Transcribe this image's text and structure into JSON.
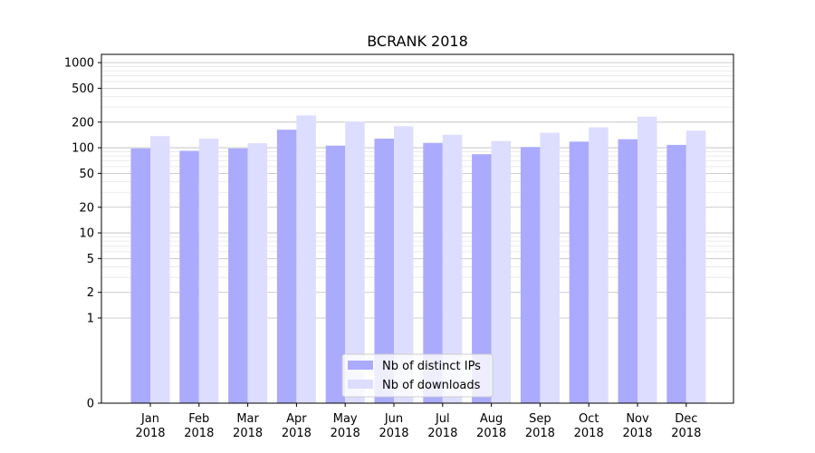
{
  "chart_data": {
    "type": "bar",
    "title": "BCRANK 2018",
    "xlabel": "",
    "ylabel": "",
    "yscale": "symlog",
    "ylim": [
      0,
      1250
    ],
    "y_ticks": [
      0,
      1,
      2,
      5,
      10,
      20,
      50,
      100,
      200,
      500,
      1000
    ],
    "categories": [
      "Jan",
      "Feb",
      "Mar",
      "Apr",
      "May",
      "Jun",
      "Jul",
      "Aug",
      "Sep",
      "Oct",
      "Nov",
      "Dec"
    ],
    "category_years": [
      "2018",
      "2018",
      "2018",
      "2018",
      "2018",
      "2018",
      "2018",
      "2018",
      "2018",
      "2018",
      "2018",
      "2018"
    ],
    "series": [
      {
        "name": "Nb of distinct IPs",
        "color": "#aaaaff",
        "values": [
          98,
          92,
          98,
          163,
          106,
          128,
          114,
          84,
          102,
          118,
          126,
          108
        ]
      },
      {
        "name": "Nb of downloads",
        "color": "#ddddff",
        "values": [
          137,
          128,
          113,
          240,
          203,
          179,
          142,
          120,
          150,
          174,
          232,
          159
        ]
      }
    ],
    "grid": true,
    "legend_position": "bottom-center"
  }
}
